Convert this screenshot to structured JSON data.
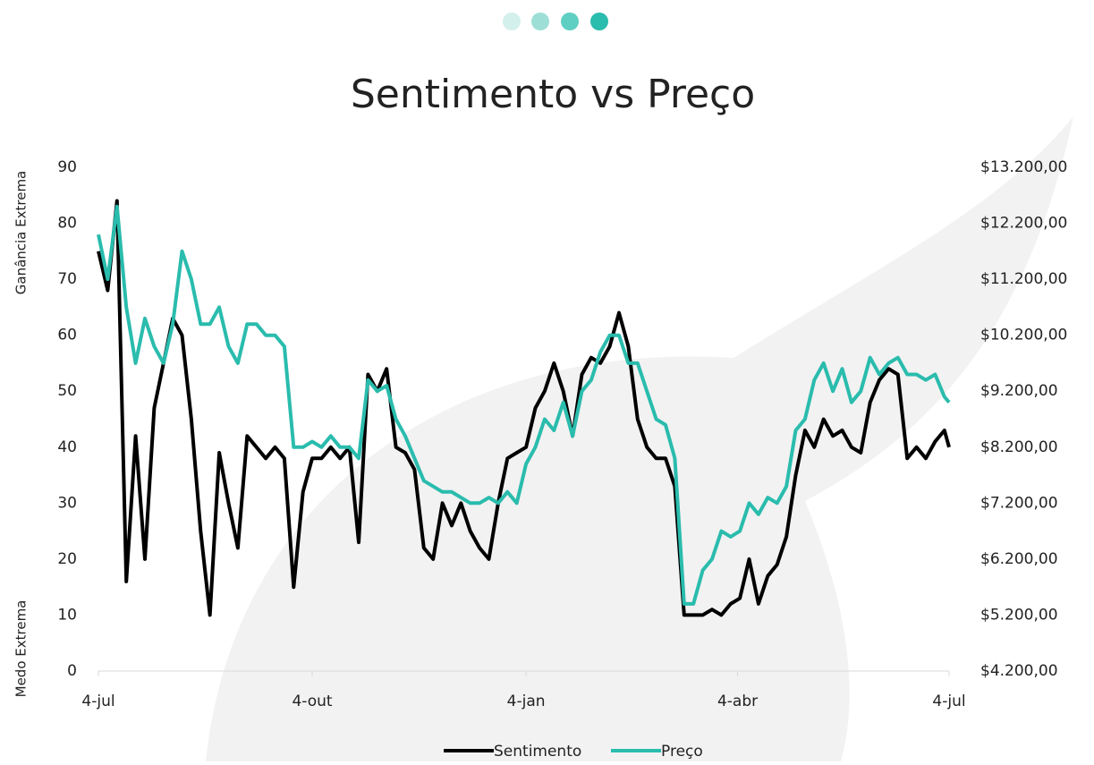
{
  "chart_data": {
    "type": "line",
    "title": "Sentimento vs Preço",
    "y_label_top": "Ganância Extrema",
    "y_label_bottom": "Medo Extrema",
    "x": [
      0,
      4,
      8,
      12,
      16,
      20,
      24,
      28,
      32,
      36,
      40,
      44,
      48,
      52,
      56,
      60,
      64,
      68,
      72,
      76,
      80,
      84,
      88,
      92,
      96,
      100,
      104,
      108,
      112,
      116,
      120,
      124,
      128,
      132,
      136,
      140,
      144,
      148,
      152,
      156,
      160,
      164,
      168,
      172,
      176,
      180,
      184,
      188,
      192,
      196,
      200,
      204,
      208,
      212,
      216,
      220,
      224,
      228,
      232,
      236,
      240,
      244,
      248,
      252,
      256,
      260,
      264,
      268,
      272,
      276,
      280,
      284,
      288,
      292,
      296,
      300,
      304,
      308,
      312,
      316,
      320,
      324,
      328,
      332,
      336,
      340,
      344,
      348,
      352,
      356,
      360,
      364,
      366
    ],
    "xlim": [
      0,
      366
    ],
    "xticks": [
      {
        "value": 0,
        "label": "4-jul"
      },
      {
        "value": 92,
        "label": "4-out"
      },
      {
        "value": 184,
        "label": "4-jan"
      },
      {
        "value": 275,
        "label": "4-abr"
      },
      {
        "value": 366,
        "label": "4-jul"
      }
    ],
    "ylim": [
      0,
      90
    ],
    "yticks": [
      0,
      10,
      20,
      30,
      40,
      50,
      60,
      70,
      80,
      90
    ],
    "y2lim": [
      4200,
      13200
    ],
    "y2ticks": [
      {
        "value": 4200,
        "label": "$4.200,00"
      },
      {
        "value": 5200,
        "label": "$5.200,00"
      },
      {
        "value": 6200,
        "label": "$6.200,00"
      },
      {
        "value": 7200,
        "label": "$7.200,00"
      },
      {
        "value": 8200,
        "label": "$8.200,00"
      },
      {
        "value": 9200,
        "label": "$9.200,00"
      },
      {
        "value": 10200,
        "label": "$10.200,00"
      },
      {
        "value": 11200,
        "label": "$11.200,00"
      },
      {
        "value": 12200,
        "label": "$12.200,00"
      },
      {
        "value": 13200,
        "label": "$13.200,00"
      }
    ],
    "series": [
      {
        "name": "Sentimento",
        "color": "#000000",
        "values": [
          75,
          68,
          84,
          16,
          42,
          20,
          47,
          55,
          63,
          60,
          45,
          25,
          10,
          39,
          30,
          22,
          42,
          40,
          38,
          40,
          38,
          15,
          32,
          38,
          38,
          40,
          38,
          40,
          23,
          53,
          50,
          54,
          40,
          39,
          36,
          22,
          20,
          30,
          26,
          30,
          25,
          22,
          20,
          30,
          38,
          39,
          40,
          47,
          50,
          55,
          50,
          42,
          53,
          56,
          55,
          58,
          64,
          58,
          45,
          40,
          38,
          38,
          33,
          10,
          10,
          10,
          11,
          10,
          12,
          13,
          20,
          12,
          17,
          19,
          24,
          35,
          43,
          40,
          45,
          42,
          43,
          40,
          39,
          48,
          52,
          54,
          53,
          38,
          40,
          38,
          41,
          43,
          40
        ]
      },
      {
        "name": "Preço",
        "color": "#2abcad",
        "axis": "y2",
        "values": [
          12000,
          11200,
          12500,
          10700,
          9700,
          10500,
          10000,
          9700,
          10400,
          11700,
          11200,
          10400,
          10400,
          10700,
          10000,
          9700,
          10400,
          10400,
          10200,
          10200,
          10000,
          8200,
          8200,
          8300,
          8200,
          8400,
          8200,
          8200,
          8000,
          9400,
          9200,
          9300,
          8700,
          8400,
          8000,
          7600,
          7500,
          7400,
          7400,
          7300,
          7200,
          7200,
          7300,
          7200,
          7400,
          7200,
          7900,
          8200,
          8700,
          8500,
          9000,
          8400,
          9200,
          9400,
          9900,
          10200,
          10200,
          9700,
          9700,
          9200,
          8700,
          8600,
          8000,
          5400,
          5400,
          6000,
          6200,
          6700,
          6600,
          6700,
          7200,
          7000,
          7300,
          7200,
          7500,
          8500,
          8700,
          9400,
          9700,
          9200,
          9600,
          9000,
          9200,
          9800,
          9500,
          9700,
          9800,
          9500,
          9500,
          9400,
          9500,
          9100,
          9000
        ]
      }
    ]
  }
}
